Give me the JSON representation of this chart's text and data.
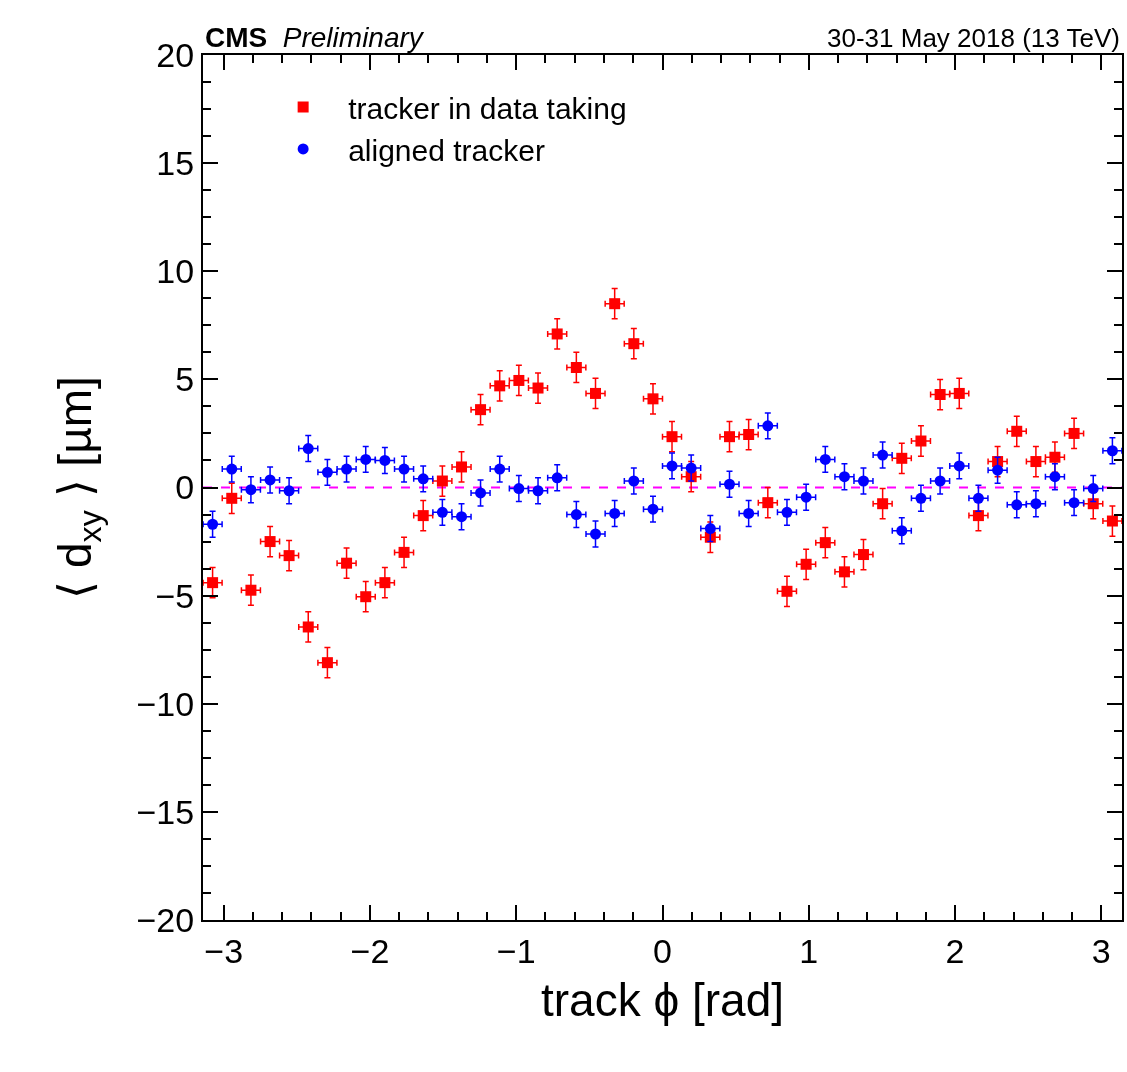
{
  "chart_data": {
    "type": "scatter",
    "title": "CMS",
    "subtitle": "Preliminary",
    "annotations": [
      "30-31 May 2018 (13 TeV)"
    ],
    "xlabel": "track ϕ [rad]",
    "ylabel": "⟨ d$_{xy}$ ⟩ [µm]",
    "x": [
      -3.076,
      -2.945,
      -2.814,
      -2.683,
      -2.553,
      -2.422,
      -2.291,
      -2.16,
      -2.029,
      -1.898,
      -1.767,
      -1.636,
      -1.505,
      -1.374,
      -1.244,
      -1.113,
      -0.982,
      -0.851,
      -0.72,
      -0.589,
      -0.458,
      -0.327,
      -0.196,
      -0.065,
      0.065,
      0.196,
      0.327,
      0.458,
      0.589,
      0.72,
      0.851,
      0.982,
      1.113,
      1.244,
      1.374,
      1.505,
      1.636,
      1.767,
      1.898,
      2.029,
      2.16,
      2.291,
      2.422,
      2.553,
      2.683,
      2.814,
      2.945,
      3.076
    ],
    "series": [
      {
        "name": "tracker in data taking",
        "color": "#ff0000",
        "marker": "square",
        "errors": [
          0.7,
          0.7,
          0.7,
          0.7,
          0.7,
          0.7,
          0.7,
          0.7,
          0.7,
          0.7,
          0.7,
          0.7,
          0.7,
          0.7,
          0.7,
          0.7,
          0.7,
          0.7,
          0.7,
          0.7,
          0.7,
          0.7,
          0.7,
          0.7,
          0.7,
          0.7,
          0.7,
          0.7,
          0.7,
          0.7,
          0.7,
          0.7,
          0.7,
          0.7,
          0.7,
          0.7,
          0.7,
          0.7,
          0.7,
          0.7,
          0.7,
          0.7,
          0.7,
          0.7,
          0.7,
          0.7,
          0.7,
          0.7
        ],
        "xerrors": [
          0.065,
          0.065,
          0.065,
          0.065,
          0.065,
          0.065,
          0.065,
          0.065,
          0.065,
          0.065,
          0.065,
          0.065,
          0.065,
          0.065,
          0.065,
          0.065,
          0.065,
          0.065,
          0.065,
          0.065,
          0.065,
          0.065,
          0.065,
          0.065,
          0.065,
          0.065,
          0.065,
          0.065,
          0.065,
          0.065,
          0.065,
          0.065,
          0.065,
          0.065,
          0.065,
          0.065,
          0.065,
          0.065,
          0.065,
          0.065,
          0.065,
          0.065,
          0.065,
          0.065,
          0.065,
          0.065,
          0.065,
          0.065
        ],
        "values": [
          -4.4,
          -0.5,
          -4.75,
          -2.5,
          -3.15,
          -6.45,
          -8.1,
          -3.5,
          -5.05,
          -4.4,
          -3.0,
          -1.3,
          0.3,
          0.95,
          3.6,
          4.7,
          4.95,
          4.6,
          7.1,
          5.55,
          4.35,
          8.5,
          6.65,
          4.1,
          2.35,
          0.5,
          -2.3,
          2.35,
          2.45,
          -0.7,
          -4.8,
          -3.55,
          -2.55,
          -3.9,
          -3.1,
          -0.75,
          1.35,
          2.15,
          4.3,
          4.35,
          -1.3,
          1.2,
          2.6,
          1.2,
          1.4,
          2.5,
          -0.75,
          -1.55
        ]
      },
      {
        "name": "aligned tracker",
        "color": "#0000ff",
        "marker": "circle",
        "errors": [
          0.6,
          0.6,
          0.6,
          0.6,
          0.6,
          0.6,
          0.6,
          0.6,
          0.6,
          0.6,
          0.6,
          0.6,
          0.6,
          0.6,
          0.6,
          0.6,
          0.6,
          0.6,
          0.6,
          0.6,
          0.6,
          0.6,
          0.6,
          0.6,
          0.6,
          0.6,
          0.6,
          0.6,
          0.6,
          0.6,
          0.6,
          0.6,
          0.6,
          0.6,
          0.6,
          0.6,
          0.6,
          0.6,
          0.6,
          0.6,
          0.6,
          0.6,
          0.6,
          0.6,
          0.6,
          0.6,
          0.6,
          0.6
        ],
        "xerrors": [
          0.065,
          0.065,
          0.065,
          0.065,
          0.065,
          0.065,
          0.065,
          0.065,
          0.065,
          0.065,
          0.065,
          0.065,
          0.065,
          0.065,
          0.065,
          0.065,
          0.065,
          0.065,
          0.065,
          0.065,
          0.065,
          0.065,
          0.065,
          0.065,
          0.065,
          0.065,
          0.065,
          0.065,
          0.065,
          0.065,
          0.065,
          0.065,
          0.065,
          0.065,
          0.065,
          0.065,
          0.065,
          0.065,
          0.065,
          0.065,
          0.065,
          0.065,
          0.065,
          0.065,
          0.065,
          0.065,
          0.065,
          0.065
        ],
        "values": [
          -1.7,
          0.85,
          -0.1,
          0.35,
          -0.15,
          1.8,
          0.7,
          0.85,
          1.3,
          1.25,
          0.85,
          0.4,
          -1.15,
          -1.35,
          -0.25,
          0.85,
          -0.05,
          -0.15,
          0.45,
          -1.25,
          -2.15,
          -1.2,
          0.3,
          -1.0,
          1.0,
          0.9,
          -1.9,
          0.15,
          -1.2,
          2.85,
          -1.15,
          -0.45,
          1.3,
          0.5,
          0.3,
          1.5,
          -2.0,
          -0.5,
          0.3,
          1.0,
          -0.5,
          0.8,
          -0.8,
          -0.75,
          0.5,
          -0.7,
          -0.05,
          1.7
        ]
      }
    ],
    "ref_lines": [
      {
        "axis": "y",
        "value": 0,
        "color": "#ff00ff",
        "line_style": "dashed"
      }
    ],
    "xlim": [
      -3.1416,
      3.1416
    ],
    "xticks": [
      -3,
      -2,
      -1,
      0,
      1,
      2,
      3
    ],
    "ylim": [
      -20,
      20
    ],
    "yticks": [
      -20,
      -15,
      -10,
      -5,
      0,
      5,
      10,
      15,
      20
    ],
    "grid": false,
    "legend": "top left"
  }
}
